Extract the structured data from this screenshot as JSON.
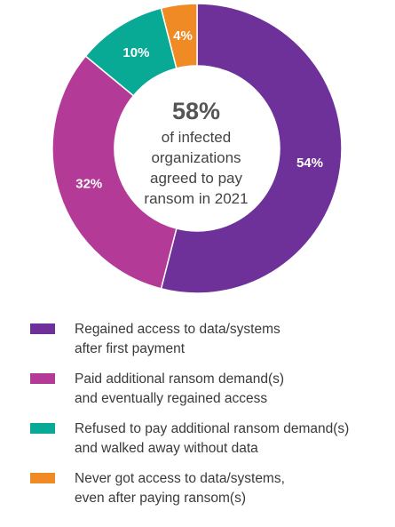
{
  "chart_data": {
    "type": "pie",
    "variant": "donut",
    "slices": [
      {
        "value": 54,
        "label": "54%",
        "color": "#6e3199",
        "legend_lines": [
          "Regained access to data/systems",
          "after first payment"
        ]
      },
      {
        "value": 32,
        "label": "32%",
        "color": "#b43a98",
        "legend_lines": [
          "Paid additional ransom demand(s)",
          "and eventually regained access"
        ]
      },
      {
        "value": 10,
        "label": "10%",
        "color": "#08aa96",
        "legend_lines": [
          "Refused to pay additional ransom demand(s)",
          "and walked away without data"
        ]
      },
      {
        "value": 4,
        "label": "4%",
        "color": "#f08a24",
        "legend_lines": [
          "Never got access to data/systems,",
          "even after paying ransom(s)"
        ]
      }
    ],
    "center": {
      "headline": "58%",
      "lines": [
        "of infected",
        "organizations",
        "agreed to pay",
        "ransom in 2021"
      ]
    },
    "legend_placement": "bottom"
  }
}
